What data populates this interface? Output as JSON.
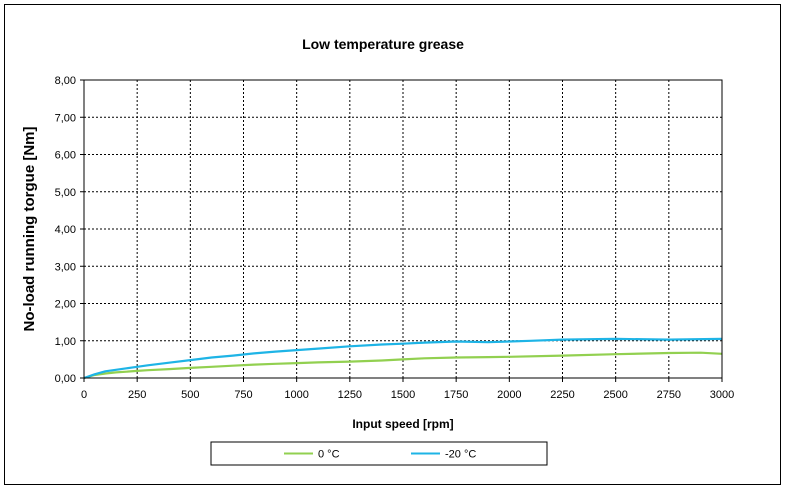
{
  "chart_data": {
    "type": "line",
    "title": "Low temperature grease",
    "xlabel": "Input speed [rpm]",
    "ylabel": "No-load running torgue [Nm]",
    "xlim": [
      0,
      3000
    ],
    "ylim": [
      0,
      8
    ],
    "x_ticks": [
      "0",
      "250",
      "500",
      "750",
      "1000",
      "1250",
      "1500",
      "1750",
      "2000",
      "2250",
      "2500",
      "2750",
      "3000"
    ],
    "y_ticks": [
      "0,00",
      "1,00",
      "2,00",
      "3,00",
      "4,00",
      "5,00",
      "6,00",
      "7,00",
      "8,00"
    ],
    "grid": true,
    "legend_position": "bottom",
    "series": [
      {
        "name": "0 °C",
        "color": "#92d050",
        "x": [
          0,
          50,
          100,
          150,
          200,
          250,
          300,
          400,
          500,
          600,
          700,
          800,
          900,
          1000,
          1100,
          1250,
          1400,
          1500,
          1600,
          1750,
          1900,
          2000,
          2250,
          2500,
          2750,
          2900,
          3000
        ],
        "y": [
          0.0,
          0.08,
          0.12,
          0.15,
          0.17,
          0.19,
          0.21,
          0.24,
          0.27,
          0.3,
          0.33,
          0.36,
          0.38,
          0.4,
          0.42,
          0.44,
          0.47,
          0.5,
          0.53,
          0.55,
          0.56,
          0.57,
          0.6,
          0.64,
          0.67,
          0.68,
          0.65
        ]
      },
      {
        "name": "-20 °C",
        "color": "#1eb4e6",
        "x": [
          0,
          50,
          100,
          150,
          200,
          250,
          300,
          400,
          500,
          600,
          700,
          800,
          900,
          1000,
          1100,
          1250,
          1400,
          1500,
          1600,
          1750,
          1900,
          2000,
          2100,
          2250,
          2500,
          2750,
          3000
        ],
        "y": [
          0.0,
          0.1,
          0.18,
          0.22,
          0.26,
          0.3,
          0.34,
          0.41,
          0.48,
          0.55,
          0.6,
          0.66,
          0.71,
          0.75,
          0.79,
          0.85,
          0.9,
          0.92,
          0.95,
          0.98,
          0.96,
          0.98,
          1.0,
          1.03,
          1.05,
          1.03,
          1.05
        ]
      }
    ]
  }
}
